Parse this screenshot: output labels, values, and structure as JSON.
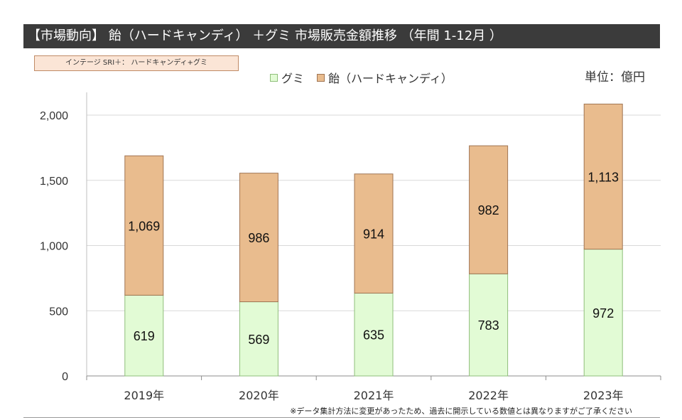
{
  "header": {
    "title": "【市場動向】 飴（ハードキャンディ） ＋グミ 市場販売金額推移 （年間 1-12月 ）"
  },
  "source_label": "インテージ SRI＋： ハードキャンディ+グミ",
  "unit_label": "単位：億円",
  "footnote": "※データ集計方法に変更があったため、過去に開示している数値とは異なりますがご了承ください",
  "colors": {
    "gummy": "#e2fbd5",
    "gummy_border": "#8fbf7a",
    "candy": "#e9bc8e",
    "candy_border": "#a07553",
    "title_bg": "#3b3b3b"
  },
  "chart_data": {
    "type": "bar",
    "stacked": true,
    "categories": [
      "2019年",
      "2020年",
      "2021年",
      "2022年",
      "2023年"
    ],
    "series": [
      {
        "name": "グミ",
        "values": [
          619,
          569,
          635,
          783,
          972
        ],
        "labels": [
          "619",
          "569",
          "635",
          "783",
          "972"
        ]
      },
      {
        "name": "飴（ハードキャンディ）",
        "values": [
          1069,
          986,
          914,
          982,
          1113
        ],
        "labels": [
          "1,069",
          "986",
          "914",
          "982",
          "1,113"
        ]
      }
    ],
    "ylim": [
      0,
      2000
    ],
    "yticks": [
      0,
      500,
      1000,
      1500,
      2000
    ],
    "ytick_labels": [
      "0",
      "500",
      "1,000",
      "1,500",
      "2,000"
    ],
    "grid": true,
    "legend_position": "top-center"
  }
}
